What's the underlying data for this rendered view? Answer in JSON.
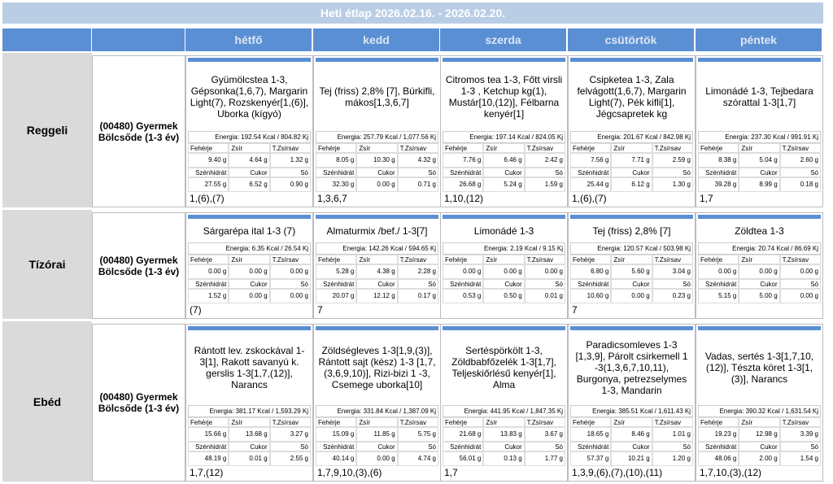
{
  "title": "Heti étlap 2026.02.16. - 2026.02.20.",
  "days": [
    "hétfő",
    "kedd",
    "szerda",
    "csütörtök",
    "péntek"
  ],
  "labels": {
    "protein": "Fehérje",
    "fat": "Zsír",
    "satfat": "T.Zsírsav",
    "carb": "Szénhidrát",
    "sugar": "Cukor",
    "salt": "Só"
  },
  "meals": [
    {
      "name": "Reggeli",
      "group": "(00480) Gyermek Bölcsőde (1-3 év)",
      "cells": [
        {
          "dish": "Gyümölcstea 1-3, Gépsonka(1,6,7), Margarin Light(7), Rozskenyér[1,(6)], Uborka (kígyó)",
          "energy": "Energia: 192.54 Kcal / 804.82 Kj",
          "protein": "9.40 g",
          "fat": "4.64 g",
          "satfat": "1.32 g",
          "carb": "27.55 g",
          "sugar": "6.52 g",
          "salt": "0.90 g",
          "allergens": "1,(6),(7)"
        },
        {
          "dish": "Tej (friss) 2,8% [7], Búrkifli, mákos[1,3,6,7]",
          "energy": "Energia: 257.79 Kcal / 1,077.56 Kj",
          "protein": "8.05 g",
          "fat": "10.30 g",
          "satfat": "4.32 g",
          "carb": "32.30 g",
          "sugar": "0.00 g",
          "salt": "0.71 g",
          "allergens": "1,3,6,7"
        },
        {
          "dish": "Citromos tea 1-3, Főtt virsli 1-3 , Ketchup kg(1), Mustár[10,(12)], Félbarna kenyér[1]",
          "energy": "Energia: 197.14 Kcal / 824.05 Kj",
          "protein": "7.76 g",
          "fat": "6.46 g",
          "satfat": "2.42 g",
          "carb": "26.68 g",
          "sugar": "5.24 g",
          "salt": "1.59 g",
          "allergens": "1,10,(12)"
        },
        {
          "dish": "Csipketea 1-3, Zala felvágott(1,6,7), Margarin Light(7), Pék kifli[1], Jégcsapretek kg",
          "energy": "Energia: 201.67 Kcal / 842.98 Kj",
          "protein": "7.56 g",
          "fat": "7.71 g",
          "satfat": "2.59 g",
          "carb": "25.44 g",
          "sugar": "6.12 g",
          "salt": "1.30 g",
          "allergens": "1,(6),(7)"
        },
        {
          "dish": "Limonádé 1-3, Tejbedara szórattal 1-3[1,7]",
          "energy": "Energia: 237.30 Kcal / 991.91 Kj",
          "protein": "8.38 g",
          "fat": "5.04 g",
          "satfat": "2.60 g",
          "carb": "39.28 g",
          "sugar": "8.99 g",
          "salt": "0.18 g",
          "allergens": "1,7"
        }
      ]
    },
    {
      "name": "Tízórai",
      "group": "(00480) Gyermek Bölcsőde (1-3 év)",
      "cells": [
        {
          "dish": "Sárgarépa ital 1-3 (7)",
          "energy": "Energia: 6.35 Kcal / 26.54 Kj",
          "protein": "0.00 g",
          "fat": "0.00 g",
          "satfat": "0.00 g",
          "carb": "1.52 g",
          "sugar": "0.00 g",
          "salt": "0.00 g",
          "allergens": "(7)"
        },
        {
          "dish": "Almaturmix /bef./ 1-3[7]",
          "energy": "Energia: 142.26 Kcal / 594.65 Kj",
          "protein": "5.28 g",
          "fat": "4.38 g",
          "satfat": "2.28 g",
          "carb": "20.07 g",
          "sugar": "12.12 g",
          "salt": "0.17 g",
          "allergens": "7"
        },
        {
          "dish": "Limonádé 1-3",
          "energy": "Energia: 2.19 Kcal / 9.15 Kj",
          "protein": "0.00 g",
          "fat": "0.00 g",
          "satfat": "0.00 g",
          "carb": "0.53 g",
          "sugar": "0.50 g",
          "salt": "0.01 g",
          "allergens": null
        },
        {
          "dish": "Tej (friss) 2,8% [7]",
          "energy": "Energia: 120.57 Kcal / 503.98 Kj",
          "protein": "6.80 g",
          "fat": "5.60 g",
          "satfat": "3.04 g",
          "carb": "10.60 g",
          "sugar": "0.00 g",
          "salt": "0.23 g",
          "allergens": "7"
        },
        {
          "dish": "Zöldtea 1-3",
          "energy": "Energia: 20.74 Kcal / 86.69 Kj",
          "protein": "0.00 g",
          "fat": "0.00 g",
          "satfat": "0.00 g",
          "carb": "5.15 g",
          "sugar": "5.00 g",
          "salt": "0.00 g",
          "allergens": null
        }
      ]
    },
    {
      "name": "Ebéd",
      "group": "(00480) Gyermek Bölcsőde (1-3 év)",
      "cells": [
        {
          "dish": "Rántott lev. zskockával 1-3[1], Rakott savanyú k. gerslis 1-3[1,7,(12)], Narancs",
          "energy": "Energia: 381.17 Kcal / 1,593.29 Kj",
          "protein": "15.66 g",
          "fat": "13.68 g",
          "satfat": "3.27 g",
          "carb": "48.19 g",
          "sugar": "0.01 g",
          "salt": "2.55 g",
          "allergens": "1,7,(12)"
        },
        {
          "dish": "Zöldségleves 1-3[1,9,(3)], Rántott sajt (kész) 1-3 [1,7,(3,6,9,10)], Rizi-bizi 1 -3, Csemege uborka[10]",
          "energy": "Energia: 331.84 Kcal / 1,387.09 Kj",
          "protein": "15.09 g",
          "fat": "11.85 g",
          "satfat": "5.75 g",
          "carb": "40.14 g",
          "sugar": "0.00 g",
          "salt": "4.74 g",
          "allergens": "1,7,9,10,(3),(6)"
        },
        {
          "dish": "Sertéspörkölt 1-3, Zöldbabfőzelék 1-3[1,7], Teljeskiőrlésű kenyér[1], Alma",
          "energy": "Energia: 441.95 Kcal / 1,847.35 Kj",
          "protein": "21.68 g",
          "fat": "13.83 g",
          "satfat": "3.67 g",
          "carb": "56.01 g",
          "sugar": "0.13 g",
          "salt": "1.77 g",
          "allergens": "1,7"
        },
        {
          "dish": "Paradicsomleves 1-3 [1,3,9], Párolt csirkemell 1 -3(1,3,6,7,10,11), Burgonya, petrezselymes 1-3, Mandarin",
          "energy": "Energia: 385.51 Kcal / 1,611.43 Kj",
          "protein": "18.65 g",
          "fat": "8.46 g",
          "satfat": "1.01 g",
          "carb": "57.37 g",
          "sugar": "10.21 g",
          "salt": "1.20 g",
          "allergens": "1,3,9,(6),(7),(10),(11)"
        },
        {
          "dish": "Vadas, sertés 1-3[1,7,10, (12)], Tészta köret 1-3[1, (3)], Narancs",
          "energy": "Energia: 390.32 Kcal / 1,631.54 Kj",
          "protein": "19.23 g",
          "fat": "12.98 g",
          "satfat": "3.39 g",
          "carb": "48.06 g",
          "sugar": "2.00 g",
          "salt": "1.54 g",
          "allergens": "1,7,10,(3),(12)"
        }
      ]
    }
  ]
}
